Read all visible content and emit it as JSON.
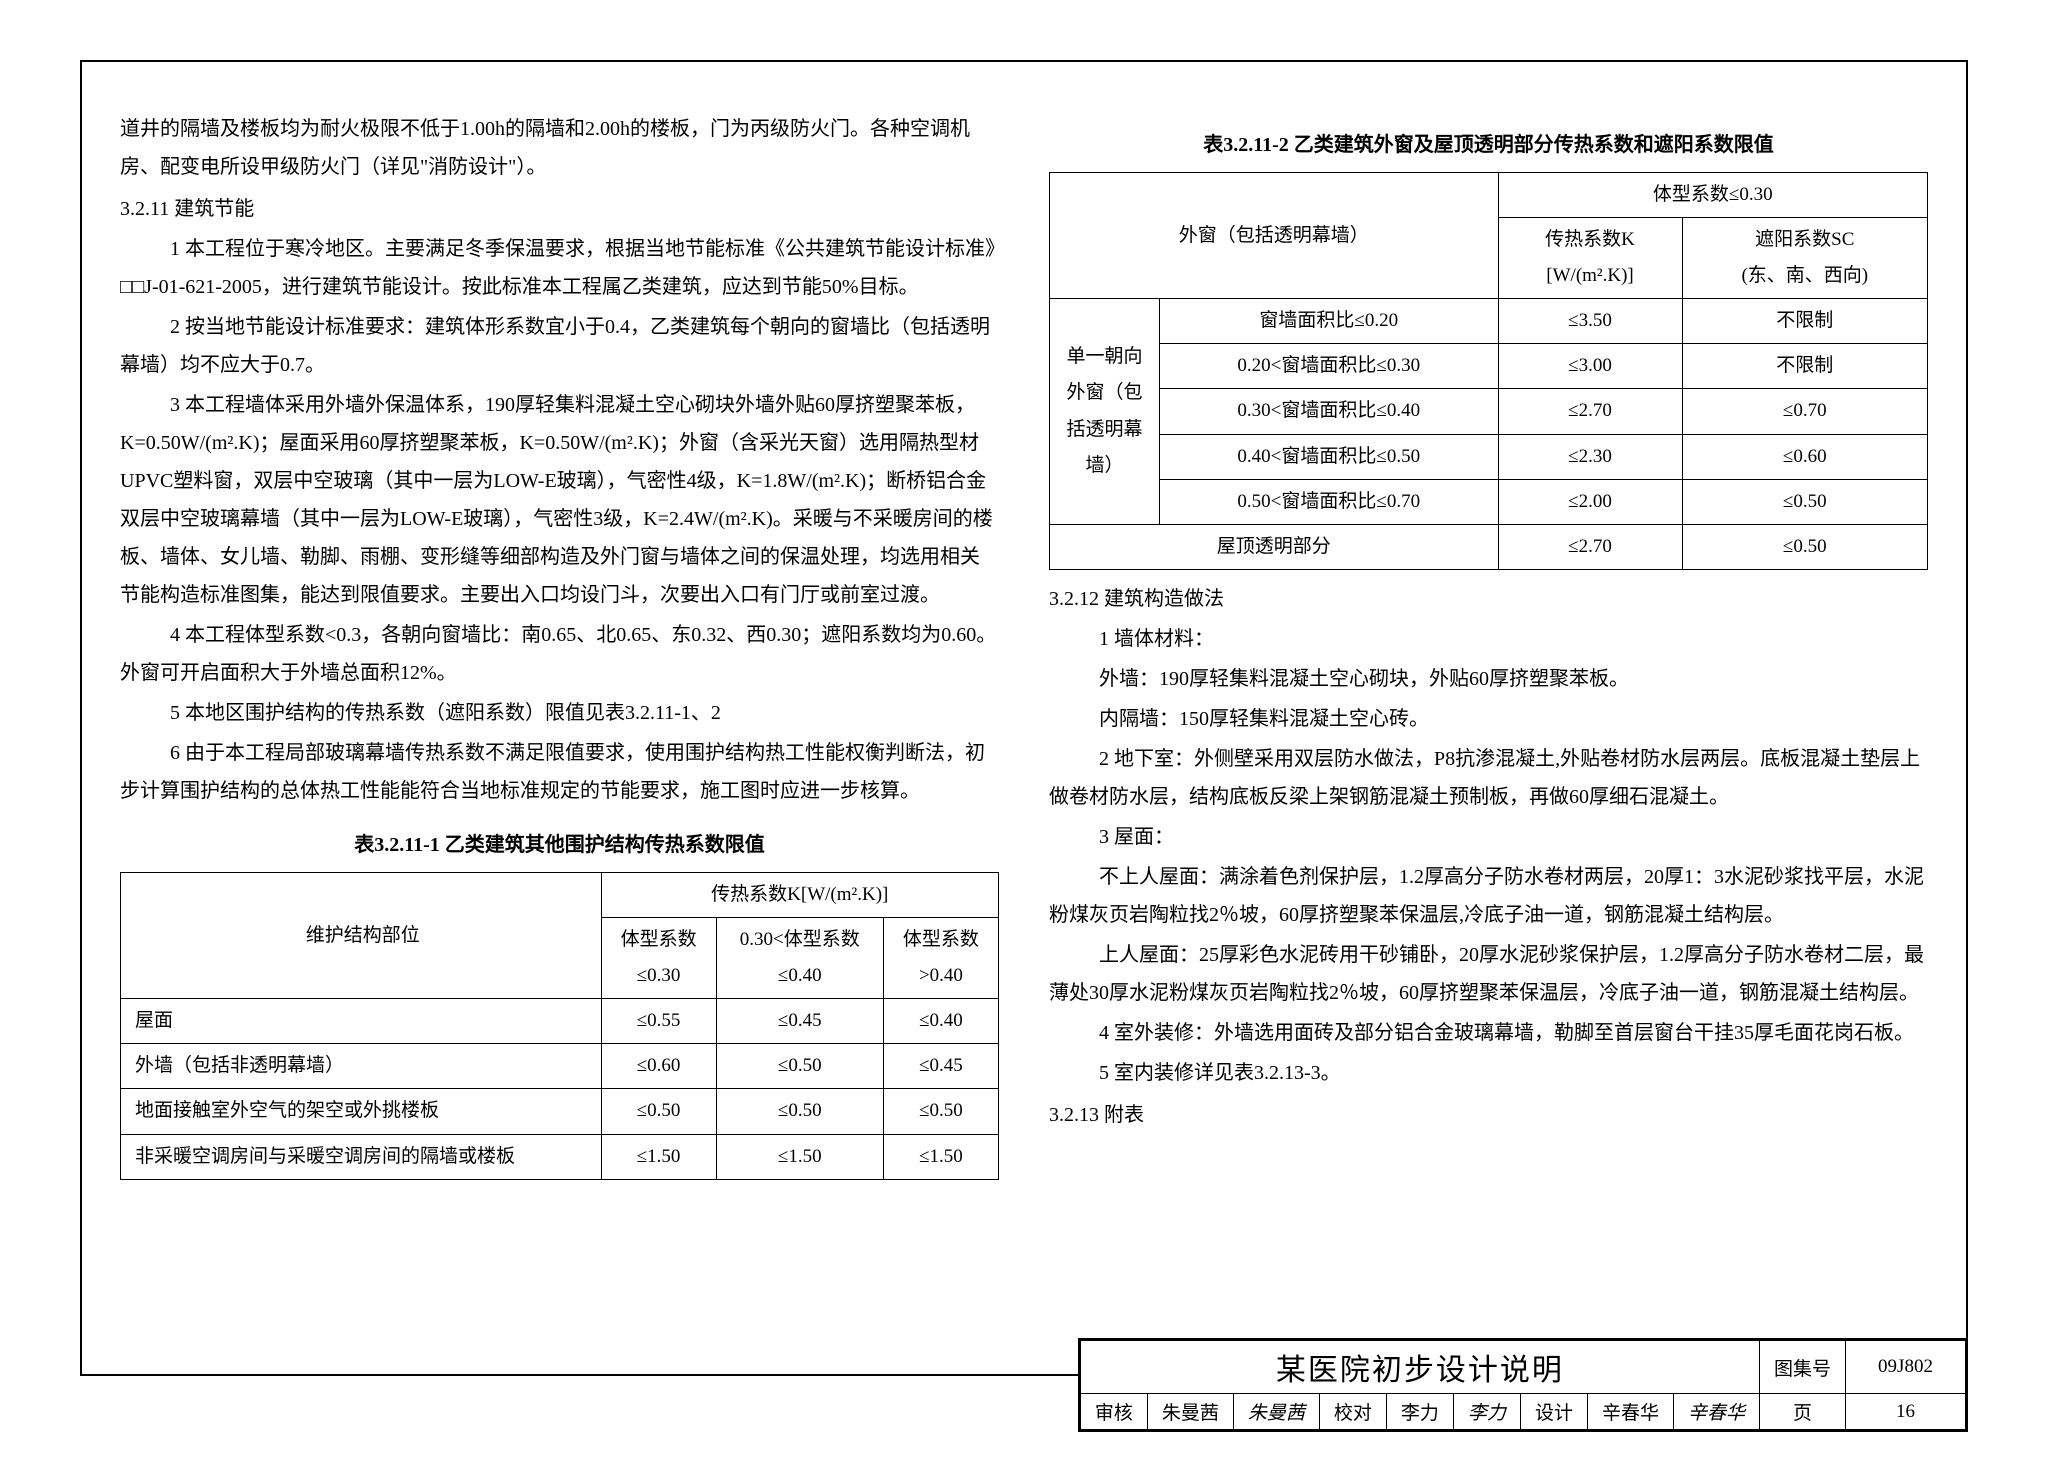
{
  "left_col": {
    "p0": "道井的隔墙及楼板均为耐火极限不低于1.00h的隔墙和2.00h的楼板，门为丙级防火门。各种空调机房、配变电所设甲级防火门（详见\"消防设计\"）。",
    "s3211": "3.2.11 建筑节能",
    "i1": "1  本工程位于寒冷地区。主要满足冬季保温要求，根据当地节能标准《公共建筑节能设计标准》□□J-01-621-2005，进行建筑节能设计。按此标准本工程属乙类建筑，应达到节能50%目标。",
    "i2": "2  按当地节能设计标准要求：建筑体形系数宜小于0.4，乙类建筑每个朝向的窗墙比（包括透明幕墙）均不应大于0.7。",
    "i3": "3  本工程墙体采用外墙外保温体系，190厚轻集料混凝土空心砌块外墙外贴60厚挤塑聚苯板，K=0.50W/(m².K)；屋面采用60厚挤塑聚苯板，K=0.50W/(m².K)；外窗（含采光天窗）选用隔热型材UPVC塑料窗，双层中空玻璃（其中一层为LOW-E玻璃），气密性4级，K=1.8W/(m².K)；断桥铝合金双层中空玻璃幕墙（其中一层为LOW-E玻璃），气密性3级，K=2.4W/(m².K)。采暖与不采暖房间的楼板、墙体、女儿墙、勒脚、雨棚、变形缝等细部构造及外门窗与墙体之间的保温处理，均选用相关节能构造标准图集，能达到限值要求。主要出入口均设门斗，次要出入口有门厅或前室过渡。",
    "i4": "4  本工程体型系数<0.3，各朝向窗墙比：南0.65、北0.65、东0.32、西0.30；遮阳系数均为0.60。外窗可开启面积大于外墙总面积12%。",
    "i5": "5  本地区围护结构的传热系数（遮阳系数）限值见表3.2.11-1、2",
    "i6": "6  由于本工程局部玻璃幕墙传热系数不满足限值要求，使用围护结构热工性能权衡判断法，初步计算围护结构的总体热工性能能符合当地标准规定的节能要求，施工图时应进一步核算。"
  },
  "table1": {
    "title": "表3.2.11-1  乙类建筑其他围护结构传热系数限值",
    "h_part": "维护结构部位",
    "h_k": "传热系数K[W/(m².K)]",
    "h_c1": "体型系数\n≤0.30",
    "h_c2": "0.30<体型系数\n≤0.40",
    "h_c3": "体型系数\n>0.40",
    "rows": [
      {
        "p": "屋面",
        "c1": "≤0.55",
        "c2": "≤0.45",
        "c3": "≤0.40"
      },
      {
        "p": "外墙（包括非透明幕墙）",
        "c1": "≤0.60",
        "c2": "≤0.50",
        "c3": "≤0.45"
      },
      {
        "p": "地面接触室外空气的架空或外挑楼板",
        "c1": "≤0.50",
        "c2": "≤0.50",
        "c3": "≤0.50"
      },
      {
        "p": "非采暖空调房间与采暖空调房间的隔墙或楼板",
        "c1": "≤1.50",
        "c2": "≤1.50",
        "c3": "≤1.50"
      }
    ]
  },
  "table2": {
    "title": "表3.2.11-2  乙类建筑外窗及屋顶透明部分传热系数和遮阳系数限值",
    "h_window": "外窗（包括透明幕墙）",
    "h_shape": "体型系数≤0.30",
    "h_k": "传热系数K\n[W/(m².K)]",
    "h_sc": "遮阳系数SC\n(东、南、西向)",
    "rowhead": "单一朝向外窗（包括透明幕墙）",
    "rows": [
      {
        "r": "窗墙面积比≤0.20",
        "k": "≤3.50",
        "sc": "不限制"
      },
      {
        "r": "0.20<窗墙面积比≤0.30",
        "k": "≤3.00",
        "sc": "不限制"
      },
      {
        "r": "0.30<窗墙面积比≤0.40",
        "k": "≤2.70",
        "sc": "≤0.70"
      },
      {
        "r": "0.40<窗墙面积比≤0.50",
        "k": "≤2.30",
        "sc": "≤0.60"
      },
      {
        "r": "0.50<窗墙面积比≤0.70",
        "k": "≤2.00",
        "sc": "≤0.50"
      }
    ],
    "roof": {
      "r": "屋顶透明部分",
      "k": "≤2.70",
      "sc": "≤0.50"
    }
  },
  "right_col": {
    "s3212": "3.2.12 建筑构造做法",
    "i1": "1  墙体材料：",
    "i1a": "外墙：190厚轻集料混凝土空心砌块，外贴60厚挤塑聚苯板。",
    "i1b": "内隔墙：150厚轻集料混凝土空心砖。",
    "i2": "2  地下室：外侧壁采用双层防水做法，P8抗渗混凝土,外贴卷材防水层两层。底板混凝土垫层上做卷材防水层，结构底板反梁上架钢筋混凝土预制板，再做60厚细石混凝土。",
    "i3": "3  屋面：",
    "i3a": "不上人屋面：满涂着色剂保护层，1.2厚高分子防水卷材两层，20厚1：3水泥砂浆找平层，水泥粉煤灰页岩陶粒找2％坡，60厚挤塑聚苯保温层,冷底子油一道，钢筋混凝土结构层。",
    "i3b": "上人屋面：25厚彩色水泥砖用干砂铺卧，20厚水泥砂浆保护层，1.2厚高分子防水卷材二层，最薄处30厚水泥粉煤灰页岩陶粒找2％坡，60厚挤塑聚苯保温层，冷底子油一道，钢筋混凝土结构层。",
    "i4": "4  室外装修：外墙选用面砖及部分铝合金玻璃幕墙，勒脚至首层窗台干挂35厚毛面花岗石板。",
    "i5": "5  室内装修详见表3.2.13-3。",
    "s3213": "3.2.13 附表"
  },
  "titleblock": {
    "title": "某医院初步设计说明",
    "atlas_label": "图集号",
    "atlas": "09J802",
    "review_label": "审核",
    "review_name": "朱曼茜",
    "review_sig": "朱曼茜",
    "check_label": "校对",
    "check_name": "李力",
    "check_sig": "李力",
    "design_label": "设计",
    "design_name": "辛春华",
    "design_sig": "辛春华",
    "page_label": "页",
    "page": "16"
  }
}
